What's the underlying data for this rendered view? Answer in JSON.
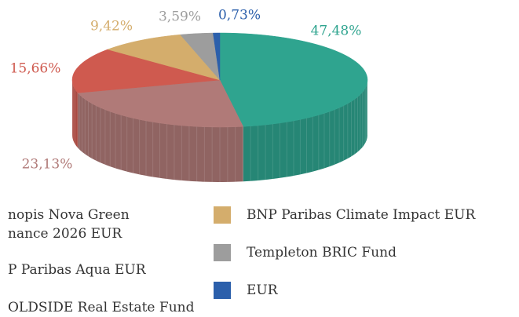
{
  "chart_data": {
    "type": "pie",
    "categories": [
      "nopis Nova Green\nnance 2026 EUR",
      "P Paribas Aqua EUR",
      "OLDSIDE Real Estate Fund",
      "BNP Paribas Climate Impact EUR",
      "Templeton BRIC Fund",
      "EUR"
    ],
    "values": [
      47.48,
      23.13,
      15.66,
      9.42,
      3.59,
      0.73
    ],
    "value_labels": [
      "47,48%",
      "23,13%",
      "15,66%",
      "9,42%",
      "3,59%",
      "0,73%"
    ],
    "colors": [
      "#2fa48f",
      "#b07a78",
      "#cf5a4f",
      "#d4ad6c",
      "#9d9d9d",
      "#2b5fab"
    ],
    "legend": "bottom"
  }
}
